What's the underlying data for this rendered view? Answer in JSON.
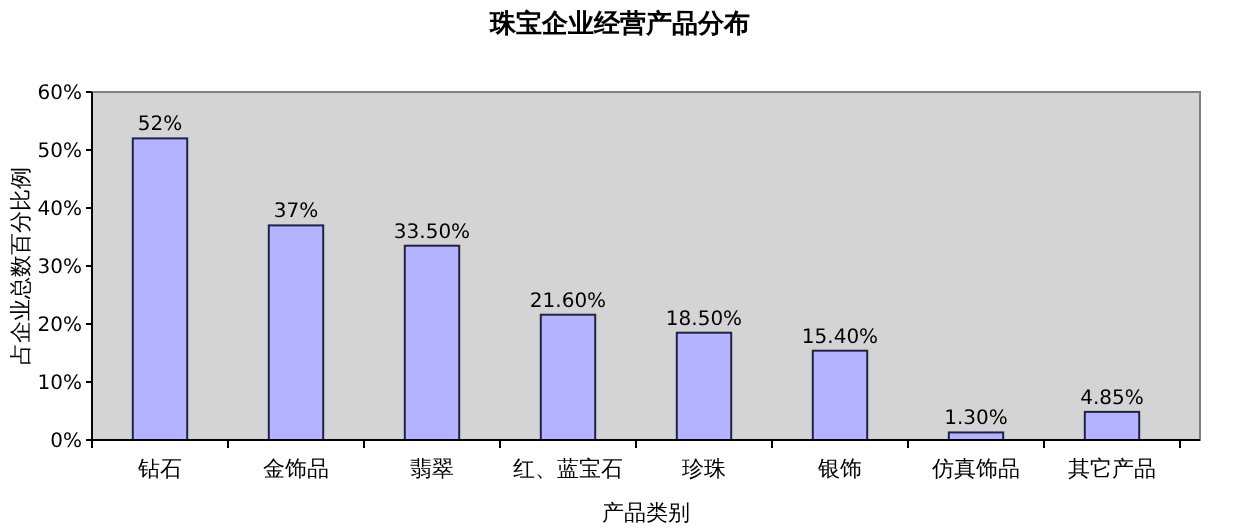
{
  "chart_data": {
    "type": "bar",
    "title": "珠宝企业经营产品分布",
    "xlabel": "产品类别",
    "ylabel": "占企业总数百分比例",
    "categories": [
      "钻石",
      "金饰品",
      "翡翠",
      "红、蓝宝石",
      "珍珠",
      "银饰",
      "仿真饰品",
      "其它产品"
    ],
    "values": [
      52,
      37,
      33.5,
      21.6,
      18.5,
      15.4,
      1.3,
      4.85
    ],
    "value_labels": [
      "52%",
      "37%",
      "33.50%",
      "21.60%",
      "18.50%",
      "15.40%",
      "1.30%",
      "4.85%"
    ],
    "color": "#b3b3ff",
    "ylim": [
      0,
      60
    ],
    "yticks": [
      {
        "value": 0,
        "label": "0%"
      },
      {
        "value": 10,
        "label": "10%"
      },
      {
        "value": 20,
        "label": "20%"
      },
      {
        "value": 30,
        "label": "30%"
      },
      {
        "value": 40,
        "label": "40%"
      },
      {
        "value": 50,
        "label": "50%"
      },
      {
        "value": 60,
        "label": "60%"
      }
    ],
    "grid": false
  }
}
